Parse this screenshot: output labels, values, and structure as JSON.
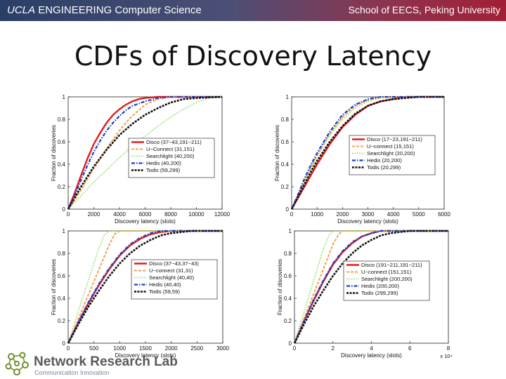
{
  "header": {
    "left_brand": "UCLA",
    "left_rest": "ENGINEERING  Computer Science",
    "right_text": "School of EECS, Peking University"
  },
  "slide": {
    "title": "CDFs of Discovery Latency"
  },
  "footer": {
    "lab_name": "Network Research Lab",
    "lab_tagline": "Communication Innovation"
  },
  "colors": {
    "disco": "#e21b1b",
    "uconnect": "#f4a050",
    "searchlight": "#8edd6a",
    "hedis": "#1a3ccc",
    "todis": "#111111",
    "accent": "#7a2a3a"
  },
  "chart_data": [
    {
      "type": "line",
      "xlabel": "Discovery latency (slots)",
      "ylabel": "Fraction of discoveries",
      "xlim": [
        0,
        12000
      ],
      "ylim": [
        0,
        1
      ],
      "xticks": [
        "0",
        "2000",
        "4000",
        "6000",
        "8000",
        "10000",
        "12000"
      ],
      "yticks": [
        "0",
        "0.2",
        "0.4",
        "0.6",
        "0.8",
        "1"
      ],
      "xtick_multiplier": "",
      "series": [
        {
          "name": "Disco (37−43,191−211)",
          "key": "disco",
          "x": [
            0,
            500,
            1000,
            1500,
            2000,
            2500,
            3000,
            3500,
            4000,
            4500,
            5000,
            5500,
            6000,
            7000,
            8000,
            12000
          ],
          "y": [
            0,
            0.14,
            0.3,
            0.45,
            0.58,
            0.68,
            0.77,
            0.84,
            0.89,
            0.93,
            0.96,
            0.98,
            0.99,
            1,
            1,
            1
          ]
        },
        {
          "name": "U−Connect (31,151)",
          "key": "uconnect",
          "x": [
            0,
            500,
            1000,
            1500,
            2000,
            2500,
            3000,
            3500,
            4000,
            4500,
            5000,
            5500,
            6000,
            7000,
            8000,
            12000
          ],
          "y": [
            0,
            0.08,
            0.17,
            0.27,
            0.36,
            0.45,
            0.54,
            0.62,
            0.7,
            0.77,
            0.83,
            0.88,
            0.93,
            0.98,
            1,
            1
          ]
        },
        {
          "name": "Searchlight (40,200)",
          "key": "searchlight",
          "x": [
            0,
            1000,
            2000,
            3000,
            4000,
            5000,
            6000,
            7000,
            8000,
            9000,
            10000,
            11000,
            12000
          ],
          "y": [
            0,
            0.12,
            0.24,
            0.35,
            0.46,
            0.56,
            0.65,
            0.74,
            0.82,
            0.89,
            0.95,
            0.99,
            1
          ]
        },
        {
          "name": "Hedis (40,200)",
          "key": "hedis",
          "x": [
            0,
            500,
            1000,
            1500,
            2000,
            2500,
            3000,
            3500,
            4000,
            4500,
            5000,
            6000,
            7000,
            8000,
            12000
          ],
          "y": [
            0,
            0.12,
            0.26,
            0.39,
            0.51,
            0.61,
            0.7,
            0.77,
            0.83,
            0.88,
            0.92,
            0.96,
            0.99,
            1,
            1
          ]
        },
        {
          "name": "Todis (59,299)",
          "key": "todis",
          "x": [
            0,
            1000,
            2000,
            3000,
            4000,
            5000,
            6000,
            7000,
            8000,
            9000,
            10000,
            12000
          ],
          "y": [
            0,
            0.2,
            0.38,
            0.53,
            0.66,
            0.76,
            0.84,
            0.9,
            0.95,
            0.98,
            0.99,
            1
          ]
        }
      ]
    },
    {
      "type": "line",
      "xlabel": "Discovery latency (slots)",
      "ylabel": "Fraction of discoveries",
      "xlim": [
        0,
        6000
      ],
      "ylim": [
        0,
        1
      ],
      "xticks": [
        "0",
        "1000",
        "2000",
        "3000",
        "4000",
        "5000",
        "6000"
      ],
      "yticks": [
        "0",
        "0.2",
        "0.4",
        "0.6",
        "0.8",
        "1"
      ],
      "xtick_multiplier": "",
      "series": [
        {
          "name": "Disco (17−23,191−211)",
          "key": "disco",
          "x": [
            0,
            250,
            500,
            750,
            1000,
            1500,
            2000,
            2500,
            3000,
            3500,
            4000,
            4500,
            6000
          ],
          "y": [
            0,
            0.1,
            0.2,
            0.3,
            0.4,
            0.58,
            0.73,
            0.84,
            0.92,
            0.96,
            0.98,
            1,
            1
          ]
        },
        {
          "name": "U−connect (15,151)",
          "key": "uconnect",
          "x": [
            0,
            250,
            500,
            750,
            1000,
            1500,
            2000,
            2500,
            3000,
            3500,
            6000
          ],
          "y": [
            0,
            0.12,
            0.25,
            0.37,
            0.48,
            0.67,
            0.82,
            0.92,
            0.97,
            1,
            1
          ]
        },
        {
          "name": "Searchlight (20,200)",
          "key": "searchlight",
          "x": [
            0,
            250,
            500,
            750,
            1000,
            1500,
            2000,
            2500,
            3000,
            3500,
            6000
          ],
          "y": [
            0,
            0.12,
            0.24,
            0.36,
            0.47,
            0.66,
            0.8,
            0.9,
            0.96,
            0.99,
            1
          ]
        },
        {
          "name": "Hedis (20,200)",
          "key": "hedis",
          "x": [
            0,
            250,
            500,
            750,
            1000,
            1500,
            2000,
            2500,
            3000,
            3500,
            6000
          ],
          "y": [
            0,
            0.13,
            0.27,
            0.39,
            0.5,
            0.69,
            0.84,
            0.93,
            0.98,
            1,
            1
          ]
        },
        {
          "name": "Todis (20,299)",
          "key": "todis",
          "x": [
            0,
            250,
            500,
            750,
            1000,
            1500,
            2000,
            2500,
            3000,
            3500,
            4000,
            5000,
            6000
          ],
          "y": [
            0,
            0.11,
            0.22,
            0.33,
            0.43,
            0.6,
            0.74,
            0.85,
            0.92,
            0.96,
            0.98,
            1,
            1
          ]
        }
      ]
    },
    {
      "type": "line",
      "xlabel": "Discovery latency (slots)",
      "ylabel": "Fraction of discoveries",
      "xlim": [
        0,
        3000
      ],
      "ylim": [
        0,
        1
      ],
      "xticks": [
        "0",
        "500",
        "1000",
        "1500",
        "2000",
        "2500",
        "3000"
      ],
      "yticks": [
        "0",
        "0.2",
        "0.4",
        "0.6",
        "0.8",
        "1"
      ],
      "xtick_multiplier": "",
      "series": [
        {
          "name": "Disco (37−43,37−43)",
          "key": "disco",
          "x": [
            0,
            200,
            400,
            600,
            800,
            1000,
            1200,
            1400,
            1600,
            1800,
            2000,
            3000
          ],
          "y": [
            0,
            0.19,
            0.36,
            0.52,
            0.66,
            0.78,
            0.87,
            0.93,
            0.97,
            0.99,
            1,
            1
          ]
        },
        {
          "name": "U−connect (31,31)",
          "key": "uconnect",
          "x": [
            0,
            200,
            400,
            600,
            800,
            900,
            1000,
            3000
          ],
          "y": [
            0,
            0.22,
            0.44,
            0.66,
            0.88,
            0.97,
            1,
            1
          ]
        },
        {
          "name": "Searchlight (40,40)",
          "key": "searchlight",
          "x": [
            0,
            200,
            400,
            600,
            700,
            800,
            3000
          ],
          "y": [
            0,
            0.29,
            0.57,
            0.85,
            0.96,
            1,
            1
          ]
        },
        {
          "name": "Hedis (40,40)",
          "key": "hedis",
          "x": [
            0,
            200,
            400,
            600,
            800,
            1000,
            1200,
            1400,
            1600,
            1800,
            2000,
            3000
          ],
          "y": [
            0,
            0.19,
            0.37,
            0.53,
            0.67,
            0.79,
            0.88,
            0.94,
            0.98,
            1,
            1,
            1
          ]
        },
        {
          "name": "Todis (59,59)",
          "key": "todis",
          "x": [
            0,
            200,
            400,
            600,
            800,
            1000,
            1200,
            1400,
            1600,
            1800,
            2000,
            2200,
            2400,
            3000
          ],
          "y": [
            0,
            0.17,
            0.33,
            0.47,
            0.6,
            0.71,
            0.8,
            0.87,
            0.92,
            0.96,
            0.98,
            0.99,
            1,
            1
          ]
        }
      ]
    },
    {
      "type": "line",
      "xlabel": "Discovery latency (slots)",
      "ylabel": "Fraction of discoveries",
      "xlim": [
        0,
        8
      ],
      "ylim": [
        0,
        1
      ],
      "xticks": [
        "0",
        "2",
        "4",
        "6",
        "8"
      ],
      "yticks": [
        "0",
        "0.2",
        "0.4",
        "0.6",
        "0.8",
        "1"
      ],
      "xtick_multiplier": "x 10⁴",
      "series": [
        {
          "name": "Disco (191−211,191−211)",
          "key": "disco",
          "x": [
            0,
            0.5,
            1,
            1.5,
            2,
            2.5,
            3,
            3.5,
            4,
            4.5,
            5,
            8
          ],
          "y": [
            0,
            0.2,
            0.38,
            0.55,
            0.7,
            0.81,
            0.89,
            0.95,
            0.98,
            1,
            1,
            1
          ]
        },
        {
          "name": "U−connect (151,151)",
          "key": "uconnect",
          "x": [
            0,
            0.5,
            1,
            1.5,
            2,
            2.3,
            2.5,
            8
          ],
          "y": [
            0,
            0.22,
            0.44,
            0.66,
            0.88,
            0.97,
            1,
            1
          ]
        },
        {
          "name": "Searchlight (200,200)",
          "key": "searchlight",
          "x": [
            0,
            0.5,
            1,
            1.5,
            1.8,
            2,
            8
          ],
          "y": [
            0,
            0.28,
            0.56,
            0.84,
            0.96,
            1,
            1
          ]
        },
        {
          "name": "Hedis (200,200)",
          "key": "hedis",
          "x": [
            0,
            0.5,
            1,
            1.5,
            2,
            2.5,
            3,
            3.5,
            4,
            4.5,
            5,
            8
          ],
          "y": [
            0,
            0.2,
            0.39,
            0.56,
            0.71,
            0.82,
            0.9,
            0.95,
            0.98,
            1,
            1,
            1
          ]
        },
        {
          "name": "Todis (299,299)",
          "key": "todis",
          "x": [
            0,
            0.5,
            1,
            1.5,
            2,
            2.5,
            3,
            3.5,
            4,
            4.5,
            5,
            5.5,
            6,
            8
          ],
          "y": [
            0,
            0.17,
            0.33,
            0.47,
            0.6,
            0.71,
            0.8,
            0.87,
            0.92,
            0.96,
            0.98,
            0.99,
            1,
            1
          ]
        }
      ]
    }
  ]
}
